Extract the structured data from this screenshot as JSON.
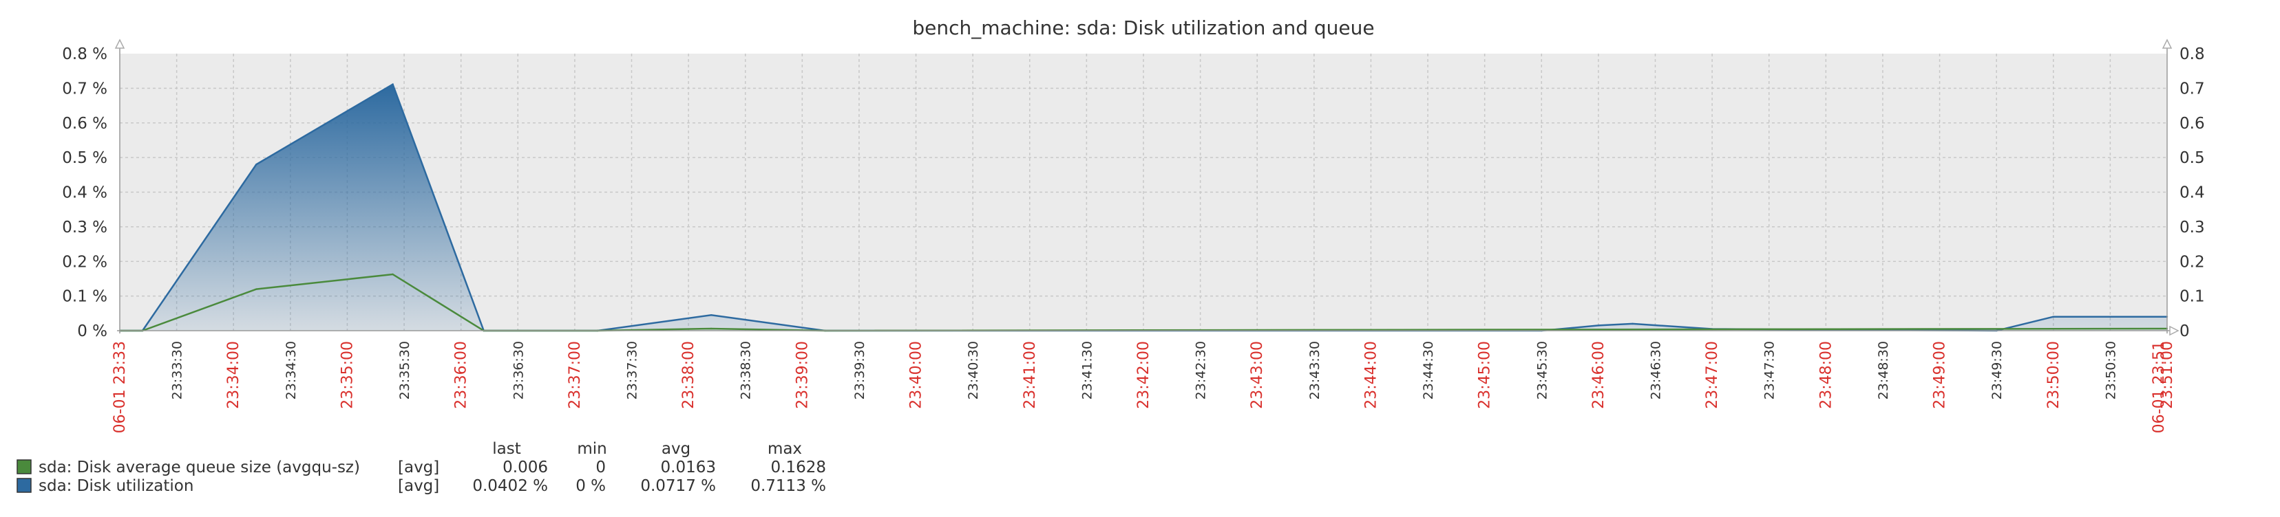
{
  "chart_data": {
    "type": "area",
    "title": "bench_machine: sda: Disk utilization and queue",
    "y_left": {
      "min": 0,
      "max": 0.8,
      "ticks": [
        "0 %",
        "0.1 %",
        "0.2 %",
        "0.3 %",
        "0.4 %",
        "0.5 %",
        "0.6 %",
        "0.7 %",
        "0.8 %"
      ]
    },
    "y_right": {
      "min": 0,
      "max": 0.8,
      "ticks": [
        "0",
        "0.1",
        "0.2",
        "0.3",
        "0.4",
        "0.5",
        "0.6",
        "0.7",
        "0.8"
      ]
    },
    "x_range": [
      "23:33:00",
      "23:51:00"
    ],
    "x_labels": [
      {
        "t": "23:33:00",
        "label": "06-01 23:33",
        "major": true,
        "edge": true
      },
      {
        "t": "23:33:30",
        "label": "23:33:30",
        "major": false
      },
      {
        "t": "23:34:00",
        "label": "23:34:00",
        "major": true
      },
      {
        "t": "23:34:30",
        "label": "23:34:30",
        "major": false
      },
      {
        "t": "23:35:00",
        "label": "23:35:00",
        "major": true
      },
      {
        "t": "23:35:30",
        "label": "23:35:30",
        "major": false
      },
      {
        "t": "23:36:00",
        "label": "23:36:00",
        "major": true
      },
      {
        "t": "23:36:30",
        "label": "23:36:30",
        "major": false
      },
      {
        "t": "23:37:00",
        "label": "23:37:00",
        "major": true
      },
      {
        "t": "23:37:30",
        "label": "23:37:30",
        "major": false
      },
      {
        "t": "23:38:00",
        "label": "23:38:00",
        "major": true
      },
      {
        "t": "23:38:30",
        "label": "23:38:30",
        "major": false
      },
      {
        "t": "23:39:00",
        "label": "23:39:00",
        "major": true
      },
      {
        "t": "23:39:30",
        "label": "23:39:30",
        "major": false
      },
      {
        "t": "23:40:00",
        "label": "23:40:00",
        "major": true
      },
      {
        "t": "23:40:30",
        "label": "23:40:30",
        "major": false
      },
      {
        "t": "23:41:00",
        "label": "23:41:00",
        "major": true
      },
      {
        "t": "23:41:30",
        "label": "23:41:30",
        "major": false
      },
      {
        "t": "23:42:00",
        "label": "23:42:00",
        "major": true
      },
      {
        "t": "23:42:30",
        "label": "23:42:30",
        "major": false
      },
      {
        "t": "23:43:00",
        "label": "23:43:00",
        "major": true
      },
      {
        "t": "23:43:30",
        "label": "23:43:30",
        "major": false
      },
      {
        "t": "23:44:00",
        "label": "23:44:00",
        "major": true
      },
      {
        "t": "23:44:30",
        "label": "23:44:30",
        "major": false
      },
      {
        "t": "23:45:00",
        "label": "23:45:00",
        "major": true
      },
      {
        "t": "23:45:30",
        "label": "23:45:30",
        "major": false
      },
      {
        "t": "23:46:00",
        "label": "23:46:00",
        "major": true
      },
      {
        "t": "23:46:30",
        "label": "23:46:30",
        "major": false
      },
      {
        "t": "23:47:00",
        "label": "23:47:00",
        "major": true
      },
      {
        "t": "23:47:30",
        "label": "23:47:30",
        "major": false
      },
      {
        "t": "23:48:00",
        "label": "23:48:00",
        "major": true
      },
      {
        "t": "23:48:30",
        "label": "23:48:30",
        "major": false
      },
      {
        "t": "23:49:00",
        "label": "23:49:00",
        "major": true
      },
      {
        "t": "23:49:30",
        "label": "23:49:30",
        "major": false
      },
      {
        "t": "23:50:00",
        "label": "23:50:00",
        "major": true
      },
      {
        "t": "23:50:30",
        "label": "23:50:30",
        "major": false
      },
      {
        "t": "23:51:00",
        "label": "23:51:00",
        "major": true
      },
      {
        "t": "23:51:00",
        "label": "06-01 23:51",
        "major": true,
        "edge": true
      }
    ],
    "series": [
      {
        "name": "sda: Disk utilization",
        "color": "#2d6aa0",
        "style": "gradient-area",
        "points": [
          [
            "23:33:00",
            0
          ],
          [
            "23:33:12",
            0
          ],
          [
            "23:34:12",
            0.48
          ],
          [
            "23:35:24",
            0.7113
          ],
          [
            "23:36:12",
            0
          ],
          [
            "23:37:12",
            0
          ],
          [
            "23:38:12",
            0.045
          ],
          [
            "23:39:12",
            0
          ],
          [
            "23:45:30",
            0
          ],
          [
            "23:46:00",
            0.015
          ],
          [
            "23:46:18",
            0.02
          ],
          [
            "23:47:00",
            0.005
          ],
          [
            "23:49:30",
            0
          ],
          [
            "23:50:00",
            0.0402
          ],
          [
            "23:51:00",
            0.0402
          ]
        ]
      },
      {
        "name": "sda: Disk average queue size (avgqu-sz)",
        "color": "#4a8a3c",
        "style": "line",
        "points": [
          [
            "23:33:00",
            0
          ],
          [
            "23:33:12",
            0
          ],
          [
            "23:34:12",
            0.12
          ],
          [
            "23:35:24",
            0.1628
          ],
          [
            "23:36:12",
            0
          ],
          [
            "23:37:12",
            0
          ],
          [
            "23:38:12",
            0.006
          ],
          [
            "23:39:12",
            0
          ],
          [
            "23:51:00",
            0.006
          ]
        ]
      }
    ]
  },
  "legend": {
    "headers": {
      "last": "last",
      "min": "min",
      "avg": "avg",
      "max": "max"
    },
    "rows": [
      {
        "name": "sda: Disk average queue size (avgqu-sz)",
        "func": "[avg]",
        "last": "0.006",
        "min": "0",
        "avg": "0.0163",
        "max": "0.1628",
        "color": "#4a8a3c"
      },
      {
        "name": "sda: Disk utilization",
        "func": "[avg]",
        "last": "0.0402 %",
        "min": "0 %",
        "avg": "0.0717 %",
        "max": "0.7113 %",
        "color": "#2d6aa0"
      }
    ]
  },
  "colors": {
    "plot_bg": "#ebebeb",
    "grid": "#c8c8c8",
    "major_label": "#d9302c",
    "minor_label": "#333333",
    "axis_text": "#333333"
  }
}
